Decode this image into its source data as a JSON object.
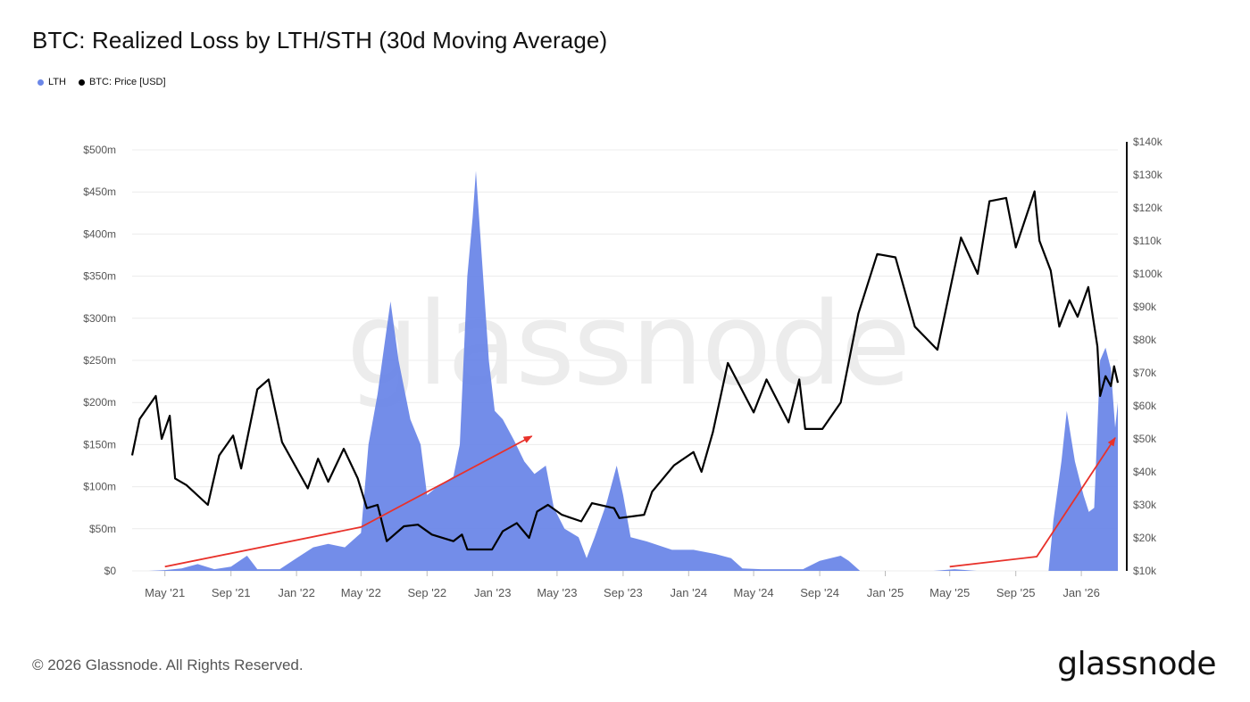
{
  "title": "BTC: Realized Loss by LTH/STH (30d Moving Average)",
  "legend": [
    {
      "label": "LTH",
      "color": "#6b87e8"
    },
    {
      "label": "BTC: Price [USD]",
      "color": "#000000"
    }
  ],
  "watermark": "glassnode",
  "footer": "© 2026 Glassnode. All Rights Reserved.",
  "brand": "glassnode",
  "colors": {
    "lth_fill": "#6b87e8",
    "price_line": "#000000",
    "annotation": "#e8322b",
    "grid": "#ececec"
  },
  "chart_data": {
    "type": "area",
    "title": "BTC: Realized Loss by LTH/STH (30d Moving Average)",
    "x_ticks": [
      "May '21",
      "Sep '21",
      "Jan '22",
      "May '22",
      "Sep '22",
      "Jan '23",
      "May '23",
      "Sep '23",
      "Jan '24",
      "May '24",
      "Sep '24",
      "Jan '25",
      "May '25",
      "Sep '25",
      "Jan '26"
    ],
    "y_left_ticks": [
      "$0",
      "$50m",
      "$100m",
      "$150m",
      "$200m",
      "$250m",
      "$300m",
      "$350m",
      "$400m",
      "$450m",
      "$500m"
    ],
    "y_left_range": [
      0,
      500000000
    ],
    "y_right_ticks": [
      "$10k",
      "$20k",
      "$30k",
      "$40k",
      "$50k",
      "$60k",
      "$70k",
      "$80k",
      "$90k",
      "$100k",
      "$110k",
      "$120k",
      "$130k",
      "$140k"
    ],
    "y_right_range": [
      10000,
      140000
    ],
    "x_range": [
      "2021-03-01",
      "2026-03-10"
    ],
    "grid": true,
    "legend_position": "top-left",
    "series": [
      {
        "name": "LTH",
        "axis": "left",
        "unit": "USD",
        "points": [
          [
            "2021-03-01",
            0
          ],
          [
            "2021-04-01",
            0
          ],
          [
            "2021-05-01",
            1000000
          ],
          [
            "2021-06-01",
            3000000
          ],
          [
            "2021-07-01",
            8000000
          ],
          [
            "2021-08-01",
            2000000
          ],
          [
            "2021-09-01",
            5000000
          ],
          [
            "2021-10-01",
            18000000
          ],
          [
            "2021-10-20",
            2000000
          ],
          [
            "2021-12-01",
            2000000
          ],
          [
            "2022-01-01",
            15000000
          ],
          [
            "2022-02-01",
            28000000
          ],
          [
            "2022-03-01",
            32000000
          ],
          [
            "2022-04-01",
            28000000
          ],
          [
            "2022-05-01",
            45000000
          ],
          [
            "2022-05-15",
            150000000
          ],
          [
            "2022-06-01",
            210000000
          ],
          [
            "2022-06-15",
            275000000
          ],
          [
            "2022-06-25",
            320000000
          ],
          [
            "2022-07-10",
            250000000
          ],
          [
            "2022-08-01",
            180000000
          ],
          [
            "2022-08-20",
            150000000
          ],
          [
            "2022-09-01",
            90000000
          ],
          [
            "2022-09-20",
            100000000
          ],
          [
            "2022-10-20",
            112000000
          ],
          [
            "2022-11-01",
            150000000
          ],
          [
            "2022-11-15",
            350000000
          ],
          [
            "2022-11-25",
            420000000
          ],
          [
            "2022-12-01",
            475000000
          ],
          [
            "2022-12-10",
            390000000
          ],
          [
            "2022-12-25",
            250000000
          ],
          [
            "2023-01-05",
            190000000
          ],
          [
            "2023-01-20",
            180000000
          ],
          [
            "2023-02-10",
            155000000
          ],
          [
            "2023-03-01",
            130000000
          ],
          [
            "2023-03-20",
            115000000
          ],
          [
            "2023-04-10",
            125000000
          ],
          [
            "2023-04-25",
            75000000
          ],
          [
            "2023-05-15",
            50000000
          ],
          [
            "2023-06-10",
            40000000
          ],
          [
            "2023-06-25",
            15000000
          ],
          [
            "2023-07-10",
            40000000
          ],
          [
            "2023-08-01",
            80000000
          ],
          [
            "2023-08-20",
            125000000
          ],
          [
            "2023-09-01",
            90000000
          ],
          [
            "2023-09-15",
            40000000
          ],
          [
            "2023-10-15",
            35000000
          ],
          [
            "2023-12-01",
            25000000
          ],
          [
            "2024-01-10",
            25000000
          ],
          [
            "2024-02-20",
            20000000
          ],
          [
            "2024-03-20",
            15000000
          ],
          [
            "2024-04-10",
            3000000
          ],
          [
            "2024-05-15",
            2000000
          ],
          [
            "2024-08-01",
            2000000
          ],
          [
            "2024-09-01",
            12000000
          ],
          [
            "2024-10-10",
            18000000
          ],
          [
            "2024-10-25",
            12000000
          ],
          [
            "2024-11-15",
            0
          ],
          [
            "2025-04-01",
            0
          ],
          [
            "2025-05-10",
            2000000
          ],
          [
            "2025-06-20",
            0
          ],
          [
            "2025-11-01",
            0
          ],
          [
            "2025-11-10",
            60000000
          ],
          [
            "2025-11-25",
            130000000
          ],
          [
            "2025-12-05",
            190000000
          ],
          [
            "2025-12-20",
            130000000
          ],
          [
            "2026-01-05",
            90000000
          ],
          [
            "2026-01-15",
            70000000
          ],
          [
            "2026-01-25",
            75000000
          ],
          [
            "2026-02-05",
            250000000
          ],
          [
            "2026-02-15",
            265000000
          ],
          [
            "2026-02-25",
            240000000
          ],
          [
            "2026-03-05",
            170000000
          ],
          [
            "2026-03-10",
            200000000
          ]
        ]
      },
      {
        "name": "BTC: Price [USD]",
        "axis": "right",
        "unit": "USD",
        "points": [
          [
            "2021-03-01",
            45000
          ],
          [
            "2021-03-15",
            56000
          ],
          [
            "2021-04-14",
            63000
          ],
          [
            "2021-04-25",
            50000
          ],
          [
            "2021-05-10",
            57000
          ],
          [
            "2021-05-20",
            38000
          ],
          [
            "2021-06-10",
            36000
          ],
          [
            "2021-07-20",
            30000
          ],
          [
            "2021-08-10",
            45000
          ],
          [
            "2021-09-05",
            51000
          ],
          [
            "2021-09-20",
            41000
          ],
          [
            "2021-10-20",
            65000
          ],
          [
            "2021-11-10",
            68000
          ],
          [
            "2021-12-05",
            49000
          ],
          [
            "2022-01-22",
            35000
          ],
          [
            "2022-02-10",
            44000
          ],
          [
            "2022-03-01",
            37000
          ],
          [
            "2022-03-30",
            47000
          ],
          [
            "2022-04-25",
            38000
          ],
          [
            "2022-05-12",
            29000
          ],
          [
            "2022-06-01",
            30000
          ],
          [
            "2022-06-18",
            19000
          ],
          [
            "2022-07-20",
            23500
          ],
          [
            "2022-08-15",
            24000
          ],
          [
            "2022-09-10",
            21000
          ],
          [
            "2022-10-20",
            19000
          ],
          [
            "2022-11-05",
            21000
          ],
          [
            "2022-11-15",
            16500
          ],
          [
            "2022-12-31",
            16500
          ],
          [
            "2023-01-20",
            22000
          ],
          [
            "2023-02-15",
            24500
          ],
          [
            "2023-03-10",
            20000
          ],
          [
            "2023-03-25",
            28000
          ],
          [
            "2023-04-14",
            30000
          ],
          [
            "2023-05-10",
            27000
          ],
          [
            "2023-06-15",
            25000
          ],
          [
            "2023-07-05",
            30500
          ],
          [
            "2023-08-15",
            29000
          ],
          [
            "2023-08-25",
            26000
          ],
          [
            "2023-10-10",
            27000
          ],
          [
            "2023-10-25",
            34000
          ],
          [
            "2023-12-05",
            42000
          ],
          [
            "2024-01-10",
            46000
          ],
          [
            "2024-01-25",
            40000
          ],
          [
            "2024-02-15",
            52000
          ],
          [
            "2024-03-14",
            73000
          ],
          [
            "2024-05-01",
            58000
          ],
          [
            "2024-05-25",
            68000
          ],
          [
            "2024-07-05",
            55000
          ],
          [
            "2024-07-25",
            68000
          ],
          [
            "2024-08-05",
            53000
          ],
          [
            "2024-09-06",
            53000
          ],
          [
            "2024-10-10",
            61000
          ],
          [
            "2024-11-12",
            88000
          ],
          [
            "2024-12-17",
            106000
          ],
          [
            "2025-01-20",
            105000
          ],
          [
            "2025-02-25",
            84000
          ],
          [
            "2025-04-08",
            77000
          ],
          [
            "2025-05-22",
            111000
          ],
          [
            "2025-06-22",
            100000
          ],
          [
            "2025-07-14",
            122000
          ],
          [
            "2025-08-14",
            123000
          ],
          [
            "2025-09-01",
            108000
          ],
          [
            "2025-10-06",
            125000
          ],
          [
            "2025-10-15",
            110000
          ],
          [
            "2025-11-05",
            101000
          ],
          [
            "2025-11-21",
            84000
          ],
          [
            "2025-12-10",
            92000
          ],
          [
            "2025-12-25",
            87000
          ],
          [
            "2026-01-14",
            96000
          ],
          [
            "2026-01-31",
            78000
          ],
          [
            "2026-02-05",
            63000
          ],
          [
            "2026-02-15",
            69000
          ],
          [
            "2026-02-25",
            66000
          ],
          [
            "2026-03-03",
            72000
          ],
          [
            "2026-03-10",
            67000
          ]
        ]
      }
    ],
    "annotations": [
      {
        "type": "arrow",
        "color": "#e8322b",
        "from": [
          "2021-05-01",
          5000000
        ],
        "via": [
          "2022-05-01",
          52000000
        ],
        "to": [
          "2023-03-15",
          160000000
        ]
      },
      {
        "type": "arrow",
        "color": "#e8322b",
        "from": [
          "2025-05-01",
          5000000
        ],
        "via": [
          "2025-10-10",
          17000000
        ],
        "to": [
          "2026-03-05",
          158000000
        ]
      }
    ]
  }
}
